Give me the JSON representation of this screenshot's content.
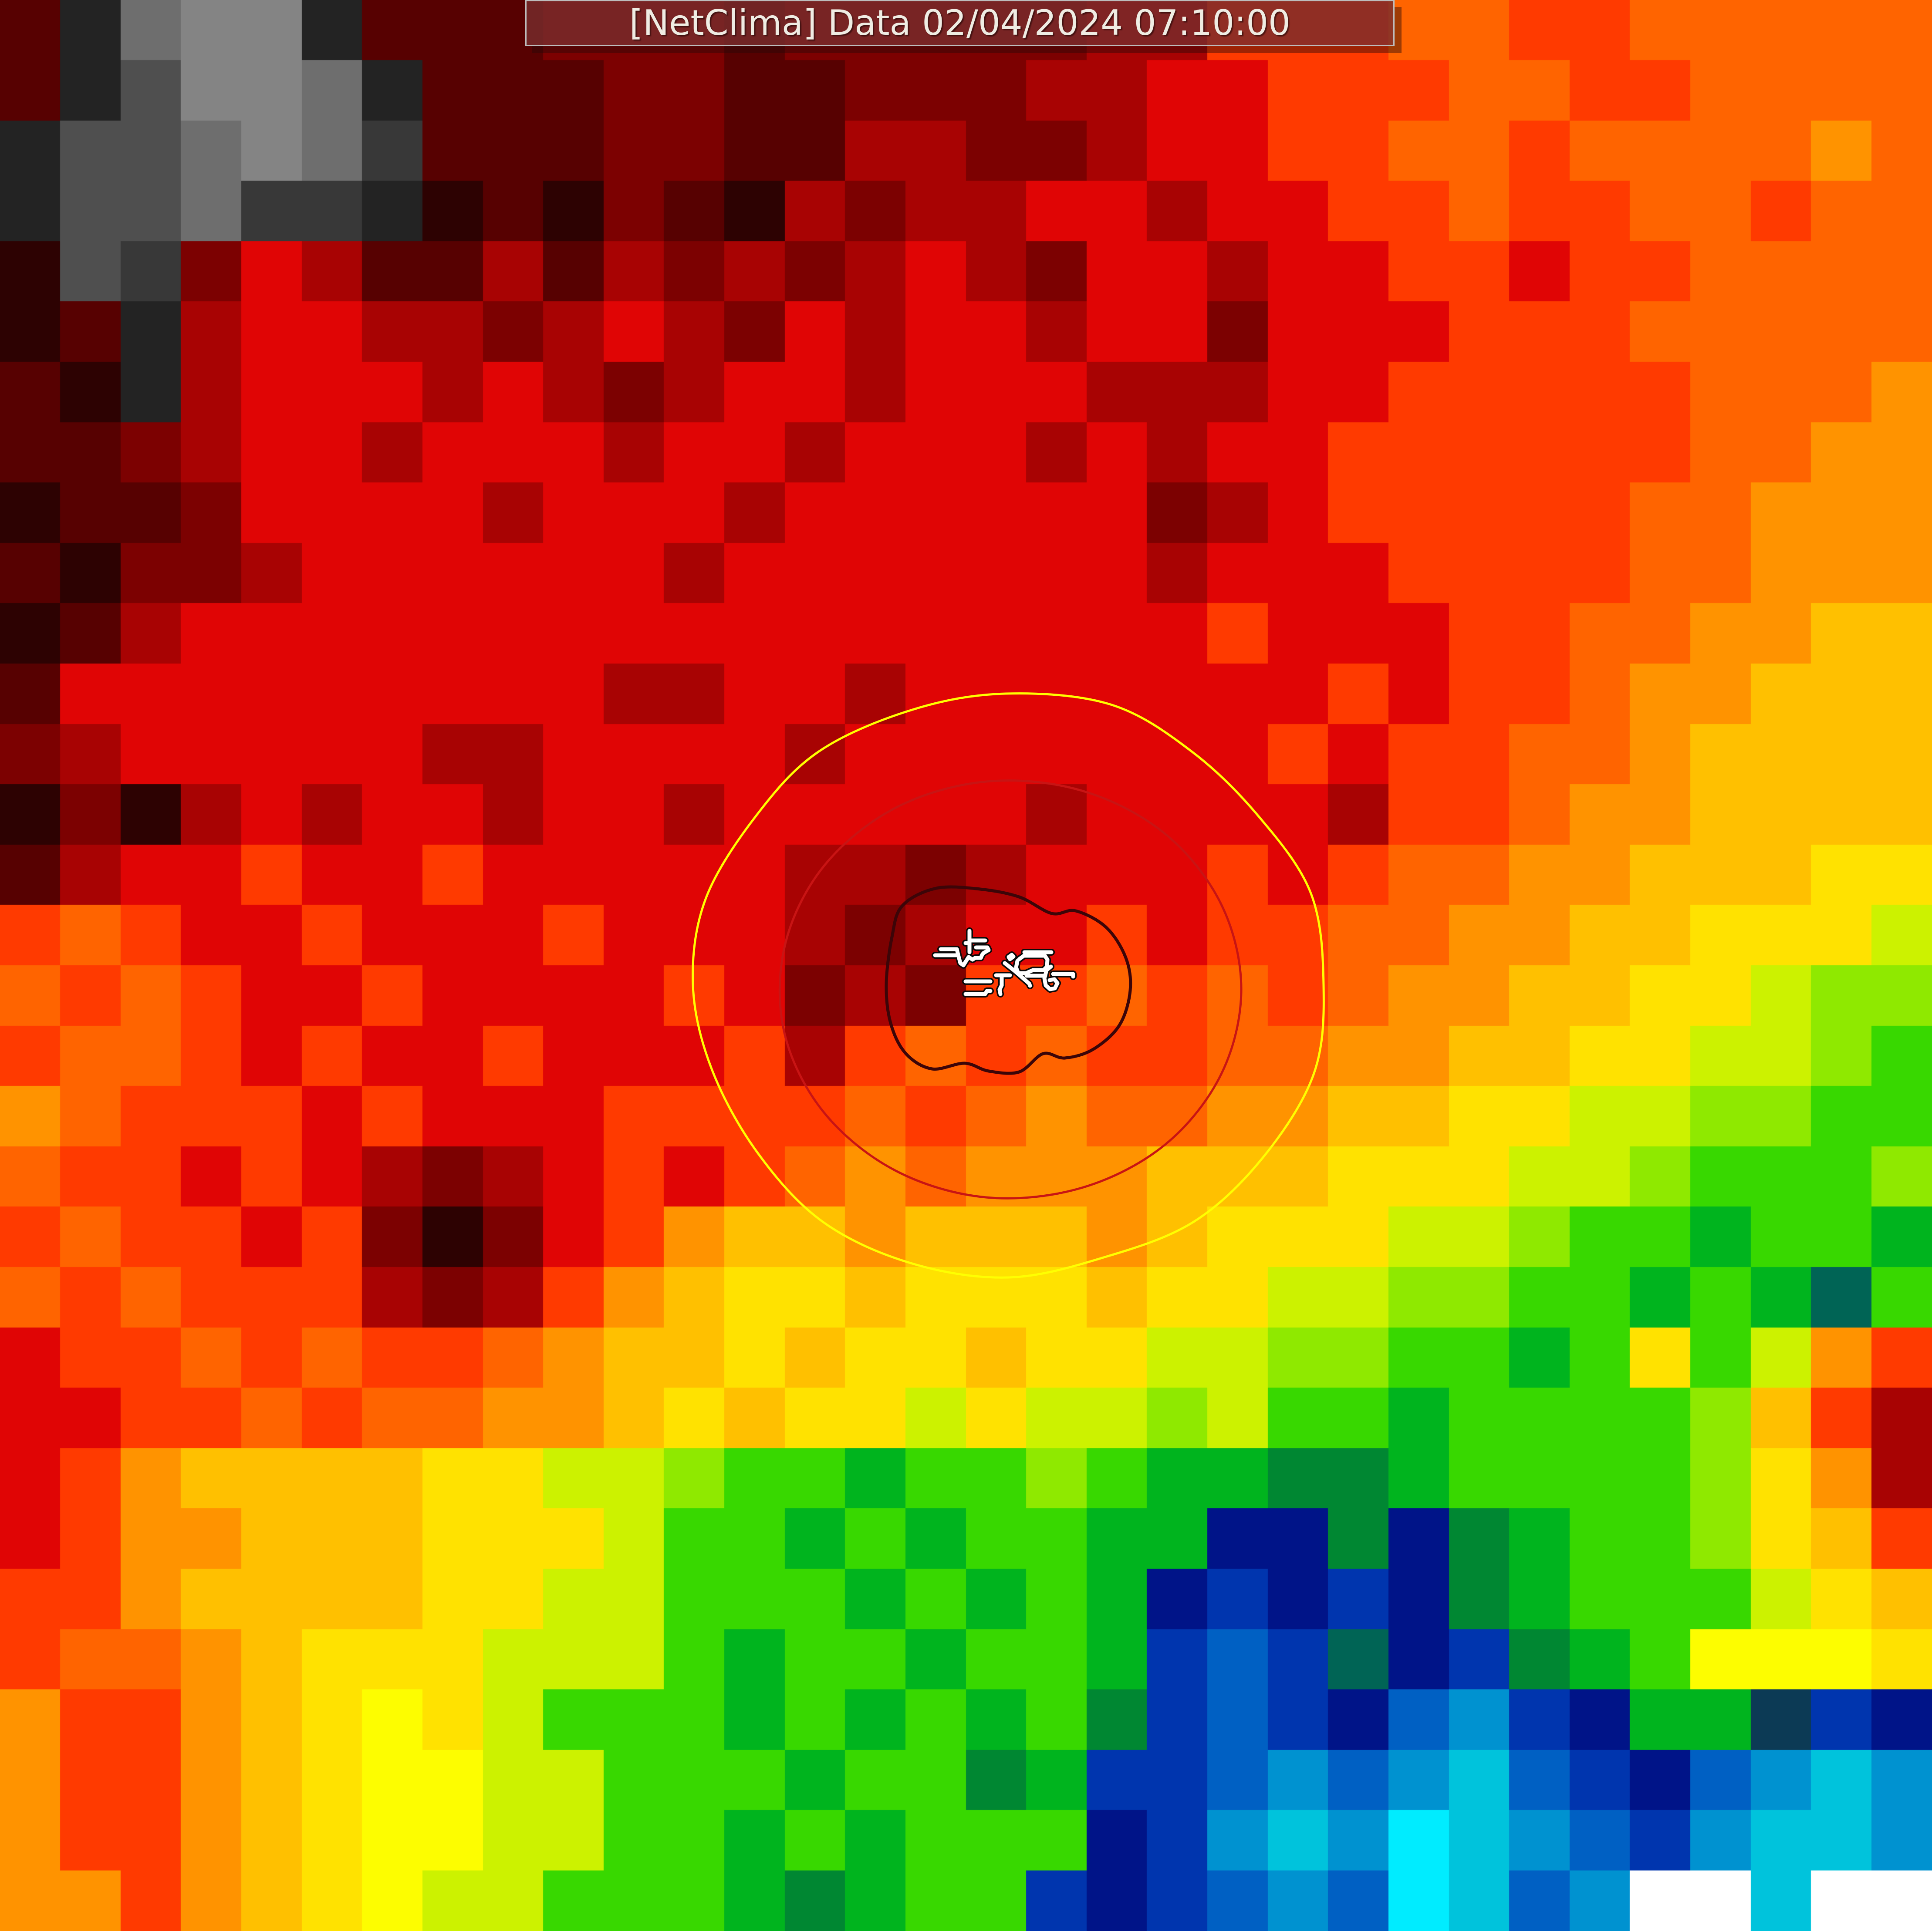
{
  "header": {
    "title": "[NetClima] Data 02/04/2024 07:10:00"
  },
  "chart_data": {
    "type": "heatmap",
    "title": "[NetClima] Data 02/04/2024 07:10:00",
    "description": "Pixelated infrared satellite temperature map with storm contour rings and white island coastlines at center",
    "grid_size": {
      "cols": 32,
      "rows": 32
    },
    "palette": {
      "k": "#232323",
      "d": "#383838",
      "e": "#4f4f4f",
      "h": "#6e6e6e",
      "i": "#848484",
      "K": "#2d0202",
      "m": "#570101",
      "M": "#7c0101",
      "D": "#a80303",
      "R": "#e00505",
      "Q": "#ff3a00",
      "O": "#ff6400",
      "o": "#ff9300",
      "a": "#ffc000",
      "y": "#ffe200",
      "Y": "#fdfd00",
      "l": "#ccf200",
      "L": "#8fe900",
      "g": "#38d800",
      "G": "#00b41e",
      "F": "#008732",
      "E": "#006455",
      "T": "#0c3a55",
      "N": "#001488",
      "b": "#0035ae",
      "B": "#0060c3",
      "A": "#0092d0",
      "C": "#00c3dc",
      "c": "#00ecff",
      "W": "#ffffff"
    },
    "grid": [
      "mkhiikmmmMMMmMMMMMDDQQQOOQQOOOOO",
      "mkeiihkmmmMMmmMMMDDRRQQQOOQQOOOO",
      "keehihdmmmMMmmDDMMDRRQQOOQOOOOoO",
      "keehddkKmKMmKDMDDRRDRRQQOQQOOQOO",
      "KedMRDmmDmDMDMDRDMRRDRRQQRQQOOOO",
      "KmkDRRDDMDRDMRDRRDRRMRRRQQQOOOOO",
      "mKkDRRRDRDMDRRDRRRDDDRRQQQQQOOOo",
      "mmMDRRDRRRDRRDRRRDRDRRQQQQQQOOoo",
      "KmmMRRRRDRRRDRRRRRRMDRQQQQQOOooo",
      "mKMMDRRRRRRDRRRRRRRDRRRQQQQOOooo",
      "KmDRRRRRRRRRRRRRRRRRQRRRQQOOooaa",
      "mRRRRRRRRRDDRRDRRRRRRRQRQQOooaaa",
      "MDRRRRRDDRRRRDRRRRRRRQRQQOOoaaaa",
      "KMKDRDRRDRRDRRRRRDRRRRDQQOooaaaa",
      "mDRRQRRQRRRRRDDMDRRRQRQOOooaaayy",
      "QOQRRQRRRQRRRDMDRRQRQQOOooaayyyl",
      "OQOQRRQRRRRQRMDMQQOQOQOooaayylLL",
      "QOOQRQRRQRRRQDQOQOQQOOooaayyllLg",
      "oOQQQRQRRRQQQQOQOoOOooaayyllLLgg",
      "OQQRQRDMDRQRQOoOoooaaayyyllLgggL",
      "QOQQRQMKMRQoaaoaaaoayyyllLggGggG",
      "OQOQQQDMDQoayyayyyayyllLLggGgGEg",
      "RQQOQOQQOoaayayyayyllLLggGgygloQ",
      "RRQQOQOOooayayylyllLlggGggggLaQD",
      "RQoaaaayyllLggGggLgGGFFGggggLyoD",
      "RQooaaayyylggGgGggGGNNFNFGggLyaQ",
      "QQoaaaayyllgggGgGgGNbNbNFGggglya",
      "QOOoayyylllgGggGggGbBbENbFGgYYYy",
      "oQQoayYylgggGgGgGgFbBbNBAbNGGTbN",
      "oQQoayYYllgggGggFGbbBABACBbNBACA",
      "oQQoayYYllggGgGgggNbACAcCABbACCA",
      "ooQoayYllgggGFGggbNbBABcCBAWWCWW"
    ],
    "overlays": {
      "contours": [
        {
          "name": "outer-contour-yellow",
          "color": "#ffff00",
          "width": 5,
          "points": [
            [
              3039,
              2262
            ],
            [
              3017,
              2465
            ],
            [
              2901,
              2657
            ],
            [
              2741,
              2806
            ],
            [
              2534,
              2888
            ],
            [
              2315,
              2934
            ],
            [
              2091,
              2901
            ],
            [
              1889,
              2806
            ],
            [
              1739,
              2647
            ],
            [
              1634,
              2455
            ],
            [
              1591,
              2262
            ],
            [
              1620,
              2065
            ],
            [
              1735,
              1875
            ],
            [
              1880,
              1726
            ],
            [
              2095,
              1630
            ],
            [
              2310,
              1593
            ],
            [
              2550,
              1618
            ],
            [
              2735,
              1725
            ],
            [
              2890,
              1875
            ],
            [
              3010,
              2052
            ]
          ]
        },
        {
          "name": "middle-contour-red",
          "color": "#c81414",
          "width": 5,
          "points": [
            [
              2850,
              2272
            ],
            [
              2804,
              2467
            ],
            [
              2675,
              2629
            ],
            [
              2484,
              2728
            ],
            [
              2264,
              2750
            ],
            [
              2055,
              2688
            ],
            [
              1891,
              2554
            ],
            [
              1801,
              2372
            ],
            [
              1802,
              2172
            ],
            [
              1891,
              1990
            ],
            [
              2055,
              1856
            ],
            [
              2265,
              1795
            ],
            [
              2484,
              1816
            ],
            [
              2675,
              1915
            ],
            [
              2804,
              2077
            ]
          ]
        },
        {
          "name": "inner-contour-dark",
          "color": "#3c0508",
          "width": 7,
          "points": [
            [
              2048,
              2152
            ],
            [
              2072,
              2080
            ],
            [
              2150,
              2040
            ],
            [
              2250,
              2042
            ],
            [
              2340,
              2060
            ],
            [
              2415,
              2098
            ],
            [
              2470,
              2092
            ],
            [
              2540,
              2130
            ],
            [
              2585,
              2200
            ],
            [
              2595,
              2275
            ],
            [
              2570,
              2355
            ],
            [
              2510,
              2410
            ],
            [
              2445,
              2430
            ],
            [
              2395,
              2420
            ],
            [
              2340,
              2462
            ],
            [
              2270,
              2460
            ],
            [
              2215,
              2442
            ],
            [
              2140,
              2455
            ],
            [
              2080,
              2420
            ],
            [
              2045,
              2350
            ],
            [
              2035,
              2260
            ]
          ]
        }
      ],
      "coastlines": {
        "stroke": "#ffffff",
        "casing": "#0a0a0a",
        "width": 9,
        "casing_width": 16,
        "paths": [
          [
            [
              2262,
              2160
            ],
            [
              2226,
              2160
            ],
            [
              2226,
              2138
            ]
          ],
          [
            [
              2226,
              2160
            ],
            [
              2226,
              2187
            ]
          ],
          [
            [
              2217,
              2166
            ],
            [
              2226,
              2166
            ]
          ],
          [
            [
              2160,
              2180
            ],
            [
              2197,
              2180
            ],
            [
              2200,
              2193
            ]
          ],
          [
            [
              2147,
              2194
            ],
            [
              2196,
              2194
            ]
          ],
          [
            [
              2200,
              2193
            ],
            [
              2205,
              2212
            ],
            [
              2212,
              2217
            ],
            [
              2224,
              2198
            ],
            [
              2233,
              2204
            ],
            [
              2239,
              2200
            ],
            [
              2252,
              2200
            ],
            [
              2255,
              2193
            ]
          ],
          [
            [
              2241,
              2176
            ],
            [
              2267,
              2176
            ],
            [
              2270,
              2182
            ],
            [
              2258,
              2189
            ],
            [
              2255,
              2193
            ]
          ],
          [
            [
              2352,
              2187
            ],
            [
              2414,
              2187
            ]
          ],
          [
            [
              2340,
              2203
            ],
            [
              2351,
              2195
            ],
            [
              2399,
              2195
            ],
            [
              2405,
              2204
            ],
            [
              2404,
              2220
            ],
            [
              2396,
              2228
            ],
            [
              2372,
              2228
            ],
            [
              2356,
              2235
            ],
            [
              2338,
              2235
            ],
            [
              2333,
              2222
            ],
            [
              2336,
              2207
            ]
          ],
          [
            [
              2357,
              2241
            ],
            [
              2400,
              2241
            ]
          ],
          [
            [
              2307,
              2212
            ],
            [
              2331,
              2231
            ],
            [
              2363,
              2259
            ],
            [
              2365,
              2264
            ]
          ],
          [
            [
              2418,
              2237
            ],
            [
              2464,
              2237
            ],
            [
              2464,
              2243
            ]
          ],
          [
            [
              2413,
              2220
            ],
            [
              2403,
              2228
            ],
            [
              2398,
              2247
            ],
            [
              2401,
              2263
            ],
            [
              2411,
              2272
            ],
            [
              2422,
              2270
            ],
            [
              2428,
              2258
            ],
            [
              2421,
              2249
            ],
            [
              2410,
              2251
            ]
          ],
          [
            [
              2316,
              2198
            ],
            [
              2323,
              2193
            ],
            [
              2327,
              2197
            ],
            [
              2319,
              2203
            ],
            [
              2316,
              2198
            ]
          ],
          [
            [
              2287,
              2240
            ],
            [
              2319,
              2240
            ]
          ],
          [
            [
              2217,
              2254
            ],
            [
              2274,
              2254
            ]
          ],
          [
            [
              2217,
              2283
            ],
            [
              2262,
              2283
            ],
            [
              2266,
              2276
            ],
            [
              2274,
              2276
            ]
          ],
          [
            [
              2300,
              2241
            ],
            [
              2300,
              2263
            ],
            [
              2295,
              2273
            ],
            [
              2297,
              2283
            ]
          ]
        ]
      }
    }
  }
}
